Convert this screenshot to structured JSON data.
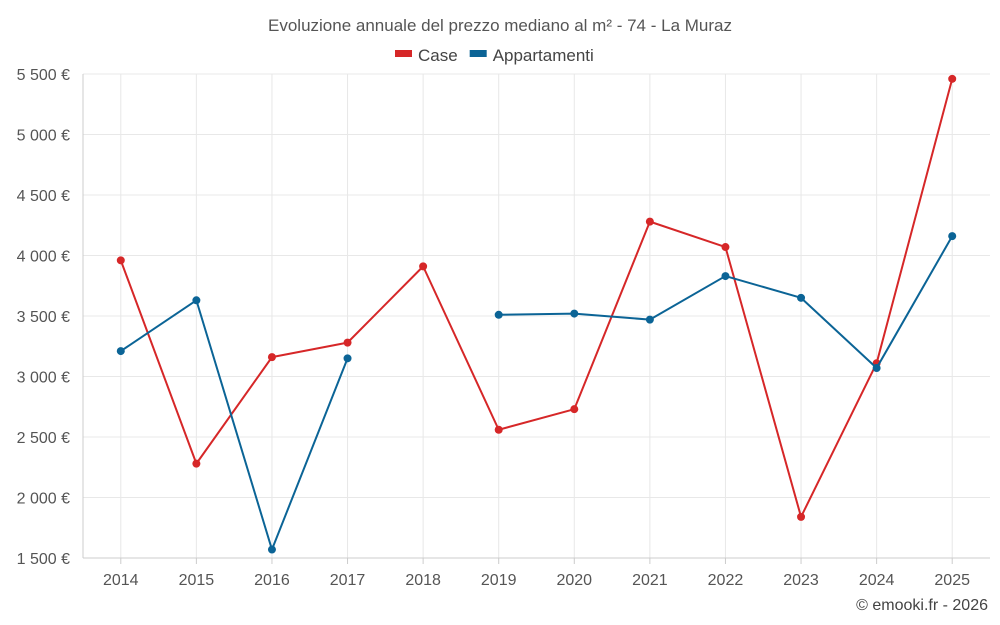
{
  "chart_data": {
    "type": "line",
    "title": "Evoluzione annuale del prezzo mediano al m² - 74 - La Muraz",
    "categories": [
      "2014",
      "2015",
      "2016",
      "2017",
      "2018",
      "2019",
      "2020",
      "2021",
      "2022",
      "2023",
      "2024",
      "2025"
    ],
    "series": [
      {
        "name": "Case",
        "color": "#d62728",
        "values": [
          3960,
          2280,
          3160,
          3280,
          3910,
          2560,
          2730,
          4280,
          4070,
          1840,
          3110,
          5460
        ]
      },
      {
        "name": "Appartamenti",
        "color": "#0b6496",
        "values": [
          3210,
          3630,
          1570,
          3150,
          null,
          3510,
          3520,
          3470,
          3830,
          3650,
          3070,
          4160
        ]
      }
    ],
    "y_ticks": [
      1500,
      2000,
      2500,
      3000,
      3500,
      4000,
      4500,
      5000,
      5500
    ],
    "y_tick_labels": [
      "1 500 €",
      "2 000 €",
      "2 500 €",
      "3 000 €",
      "3 500 €",
      "4 000 €",
      "4 500 €",
      "5 000 €",
      "5 500 €"
    ],
    "ylim": [
      1500,
      5500
    ],
    "xlabel": "",
    "ylabel": "",
    "legend_position": "top-center",
    "grid": true
  },
  "credit": "© emooki.fr - 2026"
}
